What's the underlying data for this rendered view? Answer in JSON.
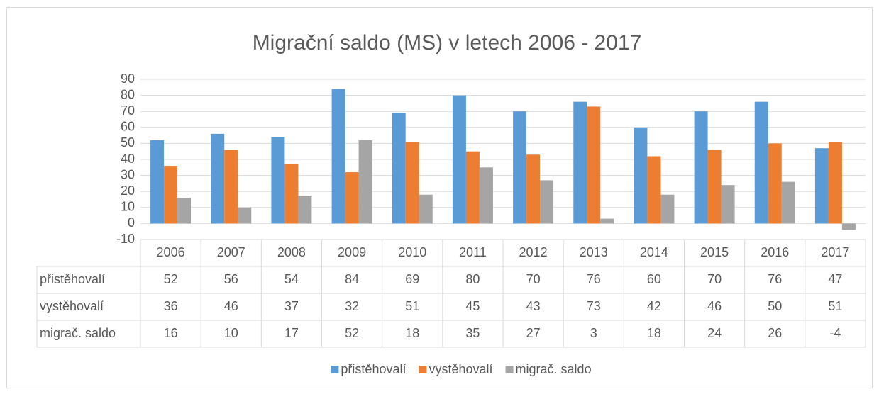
{
  "chart_data": {
    "type": "bar",
    "title": "Migrační saldo (MS) v letech 2006 - 2017",
    "categories": [
      "2006",
      "2007",
      "2008",
      "2009",
      "2010",
      "2011",
      "2012",
      "2013",
      "2014",
      "2015",
      "2016",
      "2017"
    ],
    "series": [
      {
        "name": "přistěhovalí",
        "color": "#5b9bd5",
        "values": [
          52,
          56,
          54,
          84,
          69,
          80,
          70,
          76,
          60,
          70,
          76,
          47
        ]
      },
      {
        "name": "vystěhovalí",
        "color": "#ed7d31",
        "values": [
          36,
          46,
          37,
          32,
          51,
          45,
          43,
          73,
          42,
          46,
          50,
          51
        ]
      },
      {
        "name": "migrač. saldo",
        "color": "#a5a5a5",
        "values": [
          16,
          10,
          17,
          52,
          18,
          35,
          27,
          3,
          18,
          24,
          26,
          -4
        ]
      }
    ],
    "ylim": [
      -10,
      90
    ],
    "yticks": [
      -10,
      0,
      10,
      20,
      30,
      40,
      50,
      60,
      70,
      80,
      90
    ],
    "grid": true,
    "legend": "bottom",
    "data_table": true
  }
}
